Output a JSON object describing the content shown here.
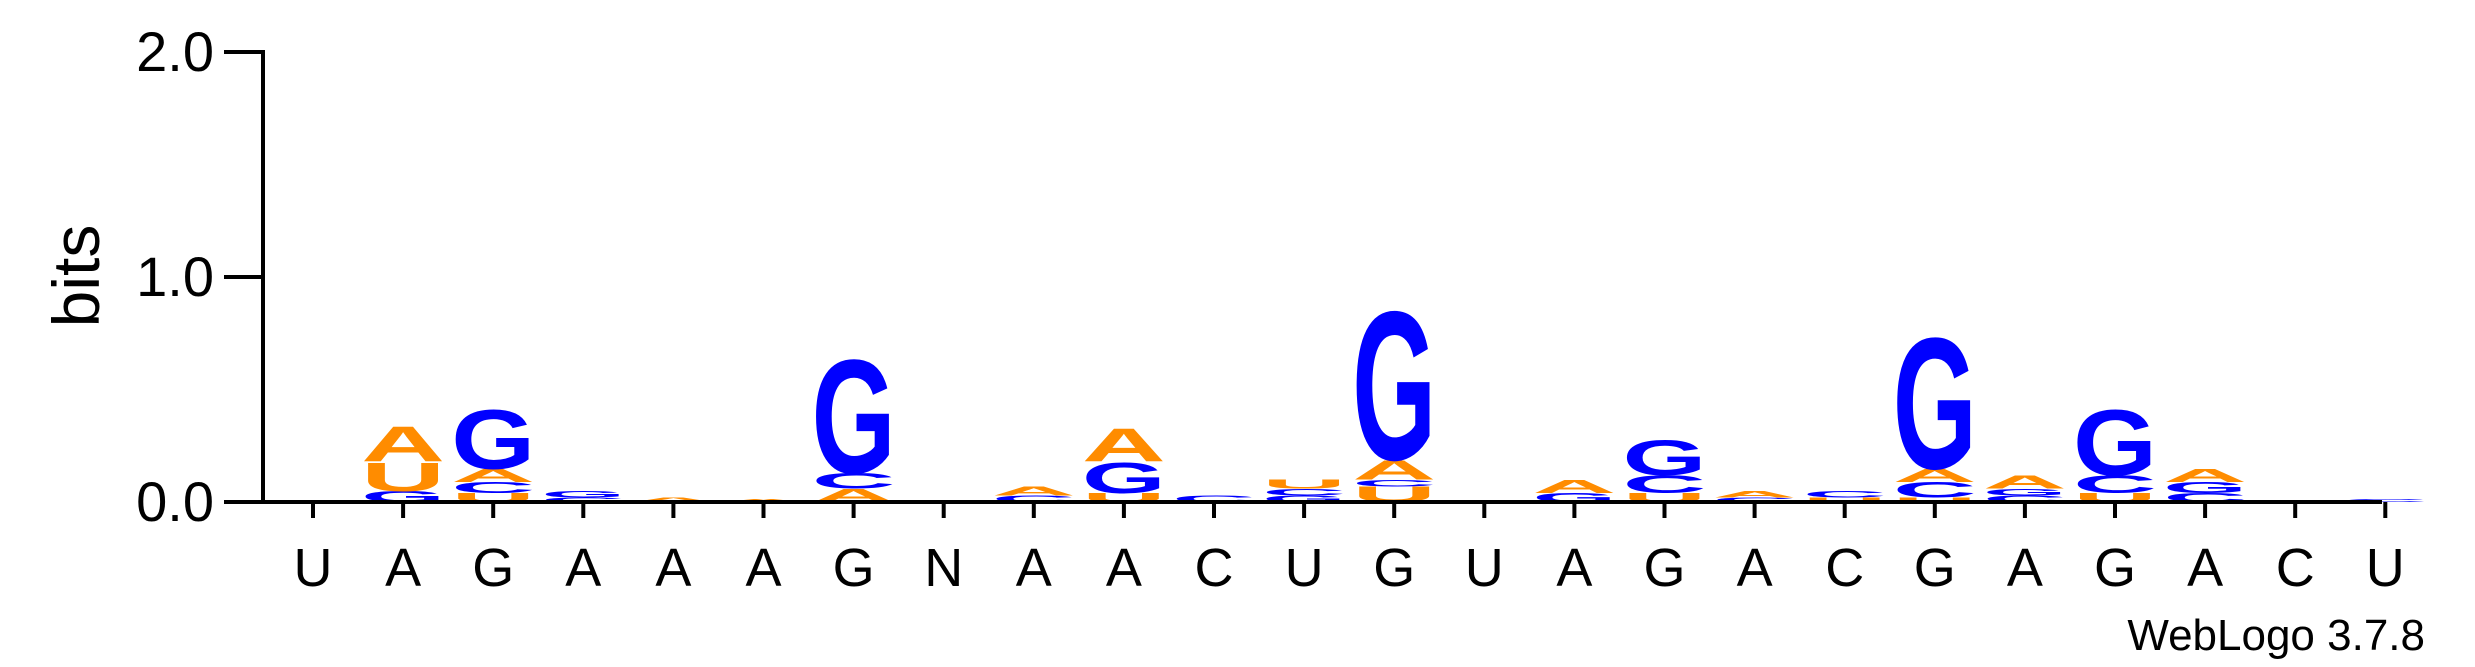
{
  "chart_data": {
    "type": "sequence-logo",
    "ylabel": "bits",
    "ylim": [
      0,
      2.0
    ],
    "yticks": [
      "0.0",
      "1.0",
      "2.0"
    ],
    "colors": {
      "A": "#ff8c00",
      "U": "#ff8c00",
      "G": "#0000ff",
      "C": "#0000ff"
    },
    "credit": "WebLogo 3.7.8",
    "positions": [
      {
        "label": "U",
        "stack": []
      },
      {
        "label": "A",
        "stack": [
          {
            "letter": "G",
            "bits": 0.05
          },
          {
            "letter": "U",
            "bits": 0.13
          },
          {
            "letter": "A",
            "bits": 0.16
          }
        ]
      },
      {
        "label": "G",
        "stack": [
          {
            "letter": "U",
            "bits": 0.04
          },
          {
            "letter": "C",
            "bits": 0.05
          },
          {
            "letter": "A",
            "bits": 0.06
          },
          {
            "letter": "G",
            "bits": 0.27
          }
        ]
      },
      {
        "label": "A",
        "stack": [
          {
            "letter": "C",
            "bits": 0.02
          },
          {
            "letter": "G",
            "bits": 0.03
          }
        ]
      },
      {
        "label": "A",
        "stack": [
          {
            "letter": "A",
            "bits": 0.02
          }
        ]
      },
      {
        "label": "A",
        "stack": [
          {
            "letter": "A",
            "bits": 0.015
          }
        ]
      },
      {
        "label": "G",
        "stack": [
          {
            "letter": "A",
            "bits": 0.06
          },
          {
            "letter": "C",
            "bits": 0.07
          },
          {
            "letter": "G",
            "bits": 0.52
          }
        ]
      },
      {
        "label": "N",
        "stack": []
      },
      {
        "label": "A",
        "stack": [
          {
            "letter": "C",
            "bits": 0.03
          },
          {
            "letter": "A",
            "bits": 0.04
          }
        ]
      },
      {
        "label": "A",
        "stack": [
          {
            "letter": "U",
            "bits": 0.04
          },
          {
            "letter": "G",
            "bits": 0.14
          },
          {
            "letter": "A",
            "bits": 0.15
          }
        ]
      },
      {
        "label": "C",
        "stack": [
          {
            "letter": "C",
            "bits": 0.03
          }
        ]
      },
      {
        "label": "U",
        "stack": [
          {
            "letter": "G",
            "bits": 0.03
          },
          {
            "letter": "C",
            "bits": 0.03
          },
          {
            "letter": "U",
            "bits": 0.04
          }
        ]
      },
      {
        "label": "G",
        "stack": [
          {
            "letter": "U",
            "bits": 0.07
          },
          {
            "letter": "C",
            "bits": 0.03
          },
          {
            "letter": "A",
            "bits": 0.09
          },
          {
            "letter": "G",
            "bits": 0.68
          }
        ]
      },
      {
        "label": "U",
        "stack": []
      },
      {
        "label": "A",
        "stack": [
          {
            "letter": "G",
            "bits": 0.04
          },
          {
            "letter": "A",
            "bits": 0.06
          }
        ]
      },
      {
        "label": "G",
        "stack": [
          {
            "letter": "U",
            "bits": 0.04
          },
          {
            "letter": "C",
            "bits": 0.08
          },
          {
            "letter": "G",
            "bits": 0.16
          }
        ]
      },
      {
        "label": "A",
        "stack": [
          {
            "letter": "C",
            "bits": 0.02
          },
          {
            "letter": "A",
            "bits": 0.03
          }
        ]
      },
      {
        "label": "C",
        "stack": [
          {
            "letter": "U",
            "bits": 0.02
          },
          {
            "letter": "C",
            "bits": 0.03
          }
        ]
      },
      {
        "label": "G",
        "stack": [
          {
            "letter": "U",
            "bits": 0.02
          },
          {
            "letter": "C",
            "bits": 0.07
          },
          {
            "letter": "A",
            "bits": 0.06
          },
          {
            "letter": "G",
            "bits": 0.6
          }
        ]
      },
      {
        "label": "A",
        "stack": [
          {
            "letter": "C",
            "bits": 0.03
          },
          {
            "letter": "G",
            "bits": 0.03
          },
          {
            "letter": "A",
            "bits": 0.06
          }
        ]
      },
      {
        "label": "G",
        "stack": [
          {
            "letter": "U",
            "bits": 0.04
          },
          {
            "letter": "C",
            "bits": 0.08
          },
          {
            "letter": "G",
            "bits": 0.3
          }
        ]
      },
      {
        "label": "A",
        "stack": [
          {
            "letter": "C",
            "bits": 0.04
          },
          {
            "letter": "G",
            "bits": 0.05
          },
          {
            "letter": "A",
            "bits": 0.06
          }
        ]
      },
      {
        "label": "C",
        "stack": []
      },
      {
        "label": "U",
        "stack": [
          {
            "letter": "C",
            "bits": 0.015
          }
        ]
      }
    ]
  }
}
